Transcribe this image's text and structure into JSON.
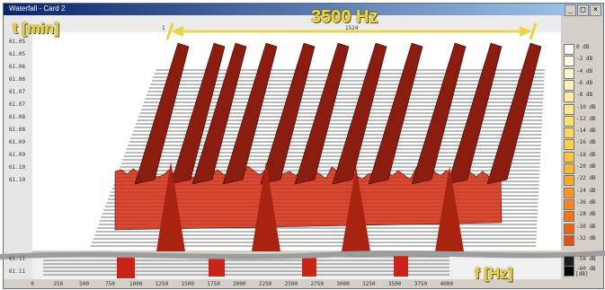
{
  "window": {
    "title": "Waterfall - Card 2"
  },
  "annotations": {
    "time_axis": "t [min]",
    "bandwidth": "3500 Hz",
    "freq_axis": "f [Hz]"
  },
  "time_ticks": [
    "61.05",
    "61.05",
    "61.06",
    "61.06",
    "61.07",
    "61.07",
    "61.08",
    "61.08",
    "61.09",
    "61.09",
    "61.10",
    "61.10",
    "61.11",
    "61.11"
  ],
  "freq_ticks": [
    "0",
    "250",
    "500",
    "750",
    "1000",
    "1250",
    "1500",
    "1750",
    "2000",
    "2250",
    "2500",
    "2750",
    "3000",
    "3250",
    "3500",
    "3750",
    "4000"
  ],
  "top_ticks": {
    "left": "1",
    "mid": "1524"
  },
  "legend": {
    "entries": [
      {
        "label": "0 dB",
        "color": "#ffffff"
      },
      {
        "label": "-2 dB",
        "color": "#fffbe8"
      },
      {
        "label": "-4 dB",
        "color": "#fff6d0"
      },
      {
        "label": "-6 dB",
        "color": "#fff1b8"
      },
      {
        "label": "-8 dB",
        "color": "#ffeca0"
      },
      {
        "label": "-10 dB",
        "color": "#ffe68a"
      },
      {
        "label": "-12 dB",
        "color": "#ffe074"
      },
      {
        "label": "-14 dB",
        "color": "#ffd860"
      },
      {
        "label": "-16 dB",
        "color": "#ffd050"
      },
      {
        "label": "-18 dB",
        "color": "#ffc440"
      },
      {
        "label": "-20 dB",
        "color": "#ffb734"
      },
      {
        "label": "-22 dB",
        "color": "#ffa82a"
      },
      {
        "label": "-24 dB",
        "color": "#ff9822"
      },
      {
        "label": "-26 dB",
        "color": "#fc861c"
      },
      {
        "label": "-28 dB",
        "color": "#f67418"
      },
      {
        "label": "-30 dB",
        "color": "#ee6214"
      },
      {
        "label": "-32 dB",
        "color": "#e45010"
      }
    ],
    "extra": [
      {
        "label": "-58 dB",
        "color": "#1e1e1e"
      },
      {
        "label": "-60 dB",
        "color": "#000000"
      }
    ],
    "unit": "[dB]"
  },
  "colors": {
    "annotation": "#e9d44a",
    "signal": "#8a1d10",
    "floor": "#d02a10",
    "grid": "#4a4a4a"
  }
}
